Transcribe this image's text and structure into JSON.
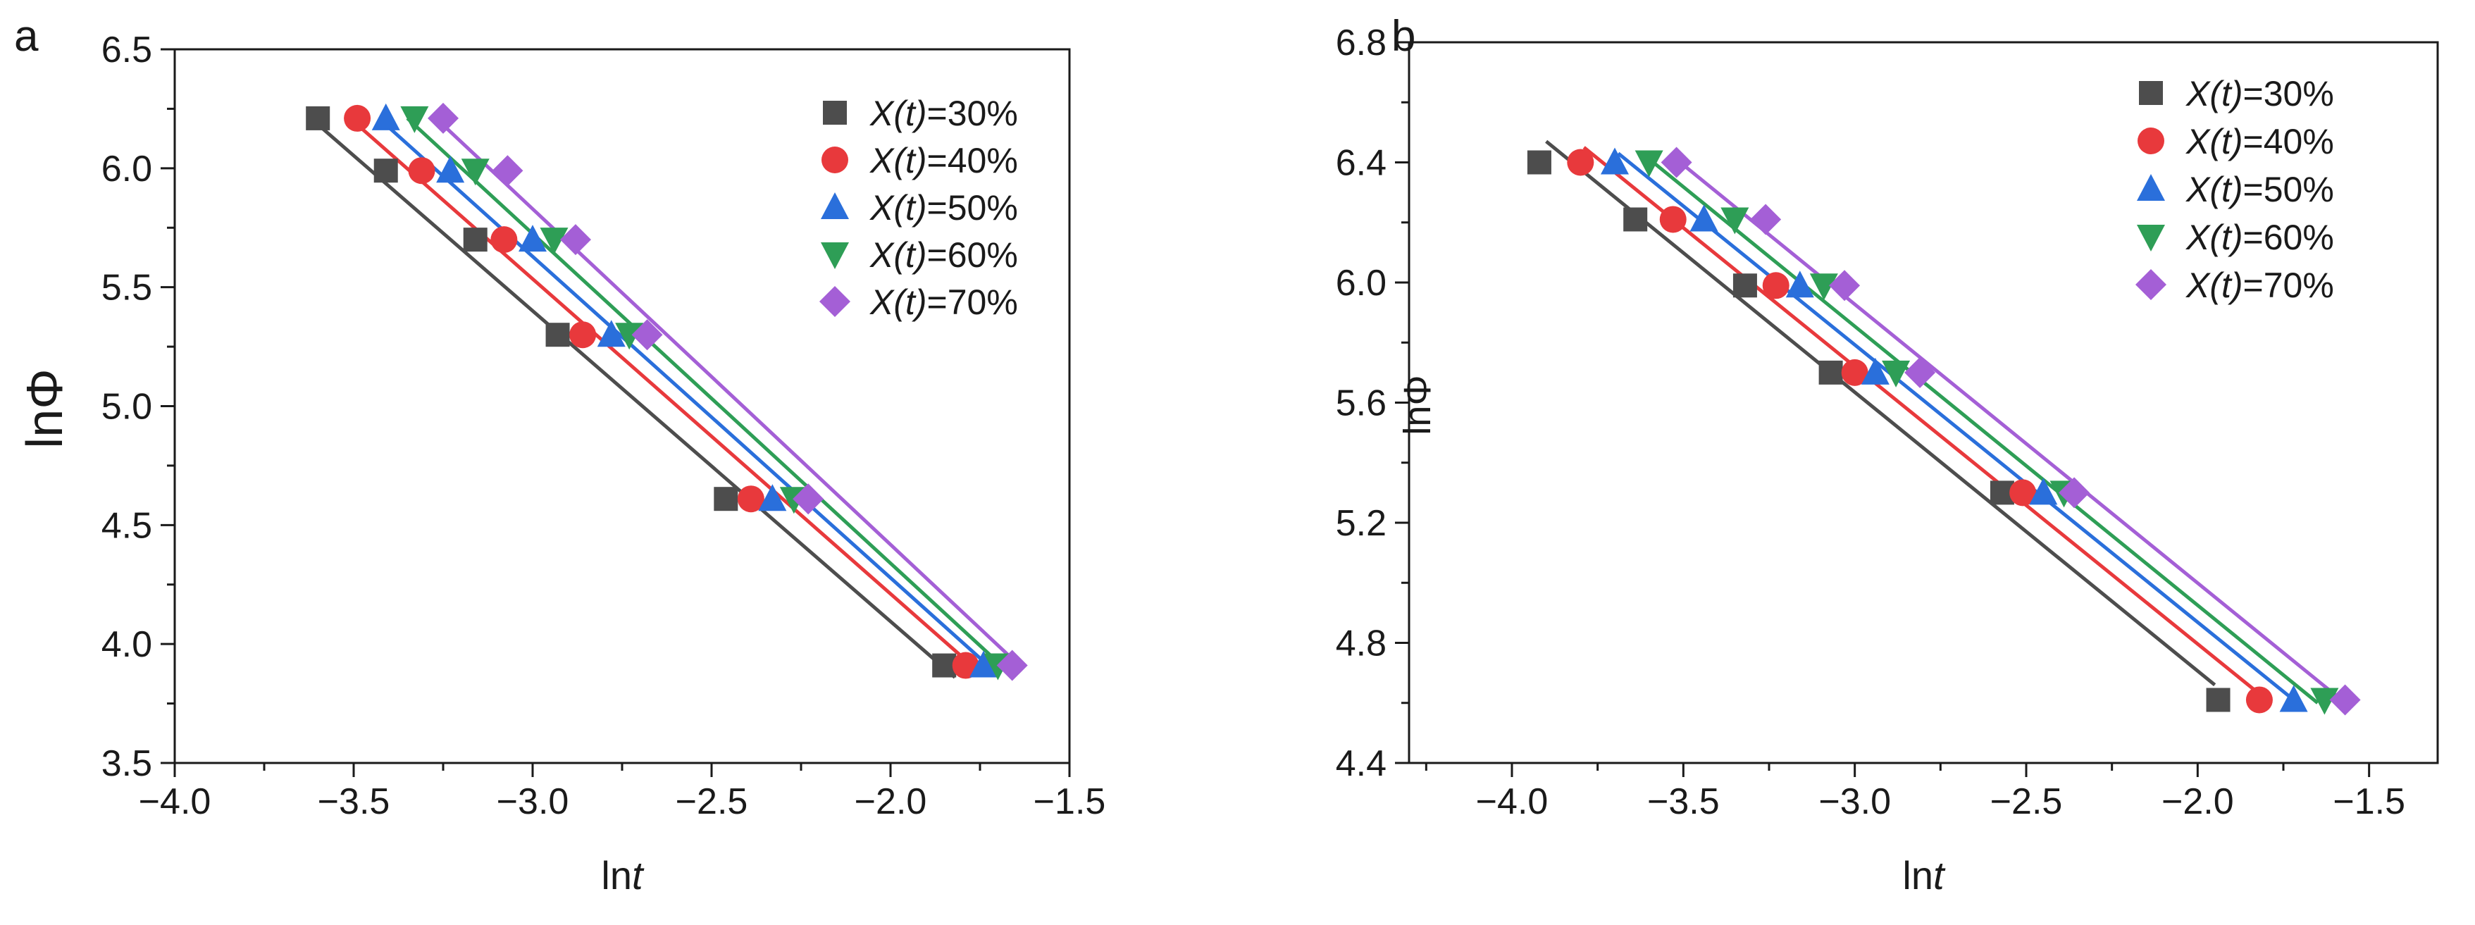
{
  "chart_data": [
    {
      "type": "scatter",
      "panel_label": "a",
      "xlabel_main": "ln",
      "xlabel_italic": "t",
      "ylabel": "lnΦ",
      "xlim": [
        -4.0,
        -1.5
      ],
      "ylim": [
        3.5,
        6.5
      ],
      "xticks": [
        -4.0,
        -3.5,
        -3.0,
        -2.5,
        -2.0,
        -1.5
      ],
      "xtick_labels": [
        "−4.0",
        "−3.5",
        "−3.0",
        "−2.5",
        "−2.0",
        "−1.5"
      ],
      "yticks": [
        3.5,
        4.0,
        4.5,
        5.0,
        5.5,
        6.0,
        6.5
      ],
      "ytick_labels": [
        "3.5",
        "4.0",
        "4.5",
        "5.0",
        "5.5",
        "6.0",
        "6.5"
      ],
      "grid": false,
      "legend_position": "top-right",
      "series": [
        {
          "name_italic": "X(t)",
          "name_rest": "=30%",
          "color": "#4d4d4d",
          "marker": "square",
          "x": [
            -3.6,
            -3.41,
            -3.16,
            -2.93,
            -2.46,
            -1.85
          ],
          "y": [
            6.21,
            5.99,
            5.7,
            5.3,
            4.61,
            3.91
          ],
          "fit": [
            [
              -3.62,
              6.21
            ],
            [
              -1.82,
              3.86
            ]
          ]
        },
        {
          "name_italic": "X(t)",
          "name_rest": "=40%",
          "color": "#e8393c",
          "marker": "circle",
          "x": [
            -3.49,
            -3.31,
            -3.08,
            -2.86,
            -2.39,
            -1.79
          ],
          "y": [
            6.21,
            5.99,
            5.7,
            5.3,
            4.61,
            3.91
          ],
          "fit": [
            [
              -3.51,
              6.21
            ],
            [
              -1.75,
              3.88
            ]
          ]
        },
        {
          "name_italic": "X(t)",
          "name_rest": "=50%",
          "color": "#2a6fdb",
          "marker": "triangle-up",
          "x": [
            -3.41,
            -3.23,
            -3.0,
            -2.78,
            -2.33,
            -1.74
          ],
          "y": [
            6.21,
            5.99,
            5.7,
            5.3,
            4.61,
            3.91
          ],
          "fit": [
            [
              -3.43,
              6.21
            ],
            [
              -1.72,
              3.9
            ]
          ]
        },
        {
          "name_italic": "X(t)",
          "name_rest": "=60%",
          "color": "#2e9e56",
          "marker": "triangle-down",
          "x": [
            -3.33,
            -3.16,
            -2.94,
            -2.73,
            -2.27,
            -1.7
          ],
          "y": [
            6.21,
            5.99,
            5.7,
            5.3,
            4.61,
            3.91
          ],
          "fit": [
            [
              -3.35,
              6.21
            ],
            [
              -1.69,
              3.91
            ]
          ]
        },
        {
          "name_italic": "X(t)",
          "name_rest": "=70%",
          "color": "#a45fd6",
          "marker": "diamond",
          "x": [
            -3.25,
            -3.07,
            -2.88,
            -2.68,
            -2.23,
            -1.66
          ],
          "y": [
            6.21,
            5.99,
            5.7,
            5.3,
            4.61,
            3.91
          ],
          "fit": [
            [
              -3.27,
              6.21
            ],
            [
              -1.64,
              3.91
            ]
          ]
        }
      ]
    },
    {
      "type": "scatter",
      "panel_label": "b",
      "xlabel_main": "ln",
      "xlabel_italic": "t",
      "ylabel": "lnΦ",
      "xlim": [
        -4.3,
        -1.3
      ],
      "ylim": [
        4.4,
        6.8
      ],
      "xticks": [
        -4.0,
        -3.5,
        -3.0,
        -2.5,
        -2.0,
        -1.5
      ],
      "xtick_labels": [
        "−4.0",
        "−3.5",
        "−3.0",
        "−2.5",
        "−2.0",
        "−1.5"
      ],
      "yticks": [
        4.4,
        4.8,
        5.2,
        5.6,
        6.0,
        6.4,
        6.8
      ],
      "ytick_labels": [
        "4.4",
        "4.8",
        "5.2",
        "5.6",
        "6.0",
        "6.4",
        "6.8"
      ],
      "grid": false,
      "legend_position": "top-right",
      "series": [
        {
          "name_italic": "X(t)",
          "name_rest": "=30%",
          "color": "#4d4d4d",
          "marker": "square",
          "x": [
            -3.92,
            -3.64,
            -3.32,
            -3.07,
            -2.57,
            -1.94
          ],
          "y": [
            6.4,
            6.21,
            5.99,
            5.7,
            5.3,
            4.61
          ],
          "fit": [
            [
              -3.9,
              6.47
            ],
            [
              -1.95,
              4.66
            ]
          ]
        },
        {
          "name_italic": "X(t)",
          "name_rest": "=40%",
          "color": "#e8393c",
          "marker": "circle",
          "x": [
            -3.8,
            -3.53,
            -3.23,
            -3.0,
            -2.51,
            -1.82
          ],
          "y": [
            6.4,
            6.21,
            5.99,
            5.7,
            5.3,
            4.61
          ],
          "fit": [
            [
              -3.79,
              6.45
            ],
            [
              -1.82,
              4.63
            ]
          ]
        },
        {
          "name_italic": "X(t)",
          "name_rest": "=50%",
          "color": "#2a6fdb",
          "marker": "triangle-up",
          "x": [
            -3.7,
            -3.44,
            -3.16,
            -2.94,
            -2.45,
            -1.72
          ],
          "y": [
            6.4,
            6.21,
            5.99,
            5.7,
            5.3,
            4.61
          ],
          "fit": [
            [
              -3.69,
              6.43
            ],
            [
              -1.72,
              4.61
            ]
          ]
        },
        {
          "name_italic": "X(t)",
          "name_rest": "=60%",
          "color": "#2e9e56",
          "marker": "triangle-down",
          "x": [
            -3.6,
            -3.35,
            -3.09,
            -2.88,
            -2.39,
            -1.63
          ],
          "y": [
            6.4,
            6.21,
            5.99,
            5.7,
            5.3,
            4.61
          ],
          "fit": [
            [
              -3.62,
              6.43
            ],
            [
              -1.65,
              4.6
            ]
          ]
        },
        {
          "name_italic": "X(t)",
          "name_rest": "=70%",
          "color": "#a45fd6",
          "marker": "diamond",
          "x": [
            -3.52,
            -3.26,
            -3.03,
            -2.81,
            -2.36,
            -1.57
          ],
          "y": [
            6.4,
            6.21,
            5.99,
            5.7,
            5.3,
            4.61
          ],
          "fit": [
            [
              -3.52,
              6.41
            ],
            [
              -1.57,
              4.6
            ]
          ]
        }
      ]
    }
  ]
}
